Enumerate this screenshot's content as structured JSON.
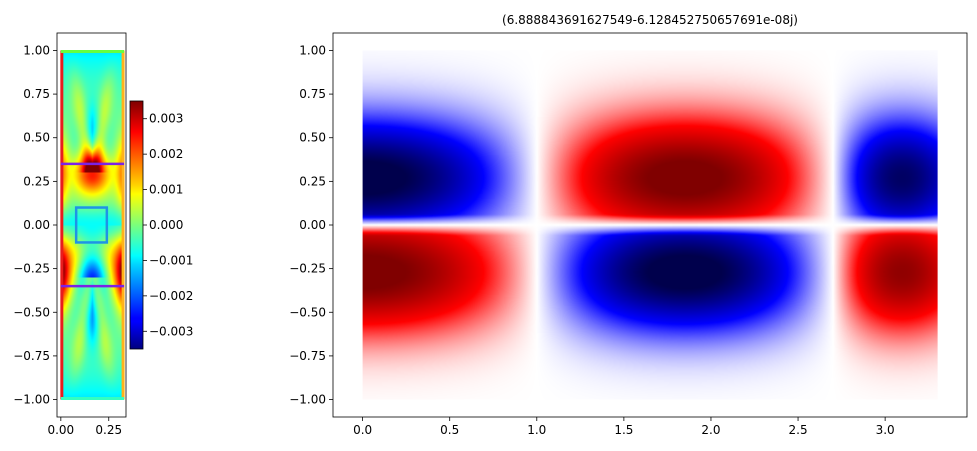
{
  "chart_data": [
    {
      "type": "heatmap",
      "panel": "left",
      "title": "",
      "xlabel": "",
      "ylabel": "",
      "colormap": "jet",
      "xlim": [
        -0.02,
        0.34
      ],
      "ylim": [
        -1.1,
        1.1
      ],
      "x_ticks": [
        0.0,
        0.25
      ],
      "x_tick_labels": [
        "0.00",
        "0.25"
      ],
      "y_ticks": [
        1.0,
        0.75,
        0.5,
        0.25,
        0.0,
        -0.25,
        -0.5,
        -0.75,
        -1.0
      ],
      "y_tick_labels": [
        "1.00",
        "0.75",
        "0.50",
        "0.25",
        "0.00",
        "−0.25",
        "−0.50",
        "−0.75",
        "−1.00"
      ],
      "domain": {
        "x": [
          0.0,
          0.33
        ],
        "y": [
          -1.0,
          1.0
        ]
      },
      "field": {
        "value_range": [
          -0.0035,
          0.0035
        ]
      },
      "overlays": {
        "horizontal_lines": [
          {
            "y": 0.35,
            "x": [
              0.0,
              0.33
            ],
            "color": "#7b22e6"
          },
          {
            "y": -0.35,
            "x": [
              0.0,
              0.33
            ],
            "color": "#7b22e6"
          }
        ],
        "rectangle": {
          "x": [
            0.08,
            0.24
          ],
          "y": [
            -0.1,
            0.1
          ],
          "color": "#1f93e6"
        },
        "boundary_colors": {
          "left": "#e81c1c",
          "right": "#ffb31a",
          "top": "#66ff40",
          "bottom": "#33ffc0"
        }
      },
      "colorbar": {
        "vmin": -0.0035,
        "vmax": 0.0035,
        "ticks": [
          0.003,
          0.002,
          0.001,
          0.0,
          -0.001,
          -0.002,
          -0.003
        ],
        "tick_labels": [
          "0.003",
          "0.002",
          "0.001",
          "0.000",
          "−0.001",
          "−0.002",
          "−0.003"
        ]
      }
    },
    {
      "type": "heatmap",
      "panel": "right",
      "title": "(6.888843691627549-6.128452750657691e-08j)",
      "xlabel": "",
      "ylabel": "",
      "colormap": "seismic",
      "xlim": [
        -0.17,
        3.47
      ],
      "ylim": [
        -1.1,
        1.1
      ],
      "x_ticks": [
        0.0,
        0.5,
        1.0,
        1.5,
        2.0,
        2.5,
        3.0
      ],
      "x_tick_labels": [
        "0.0",
        "0.5",
        "1.0",
        "1.5",
        "2.0",
        "2.5",
        "3.0"
      ],
      "y_ticks": [
        1.0,
        0.75,
        0.5,
        0.25,
        0.0,
        -0.25,
        -0.5,
        -0.75,
        -1.0
      ],
      "y_tick_labels": [
        "1.00",
        "0.75",
        "0.50",
        "0.25",
        "0.00",
        "−0.25",
        "−0.50",
        "−0.75",
        "−1.00"
      ],
      "domain": {
        "x": [
          0.0,
          3.3
        ],
        "y": [
          -1.0,
          1.0
        ]
      },
      "field": {
        "x_nodes": [
          0.0,
          1.0,
          2.7,
          3.3
        ],
        "lobe_signs_upper": [
          -1,
          1,
          -1
        ],
        "lobe_signs_lower": [
          1,
          -1,
          1
        ],
        "peak_y": 0.27
      }
    }
  ]
}
